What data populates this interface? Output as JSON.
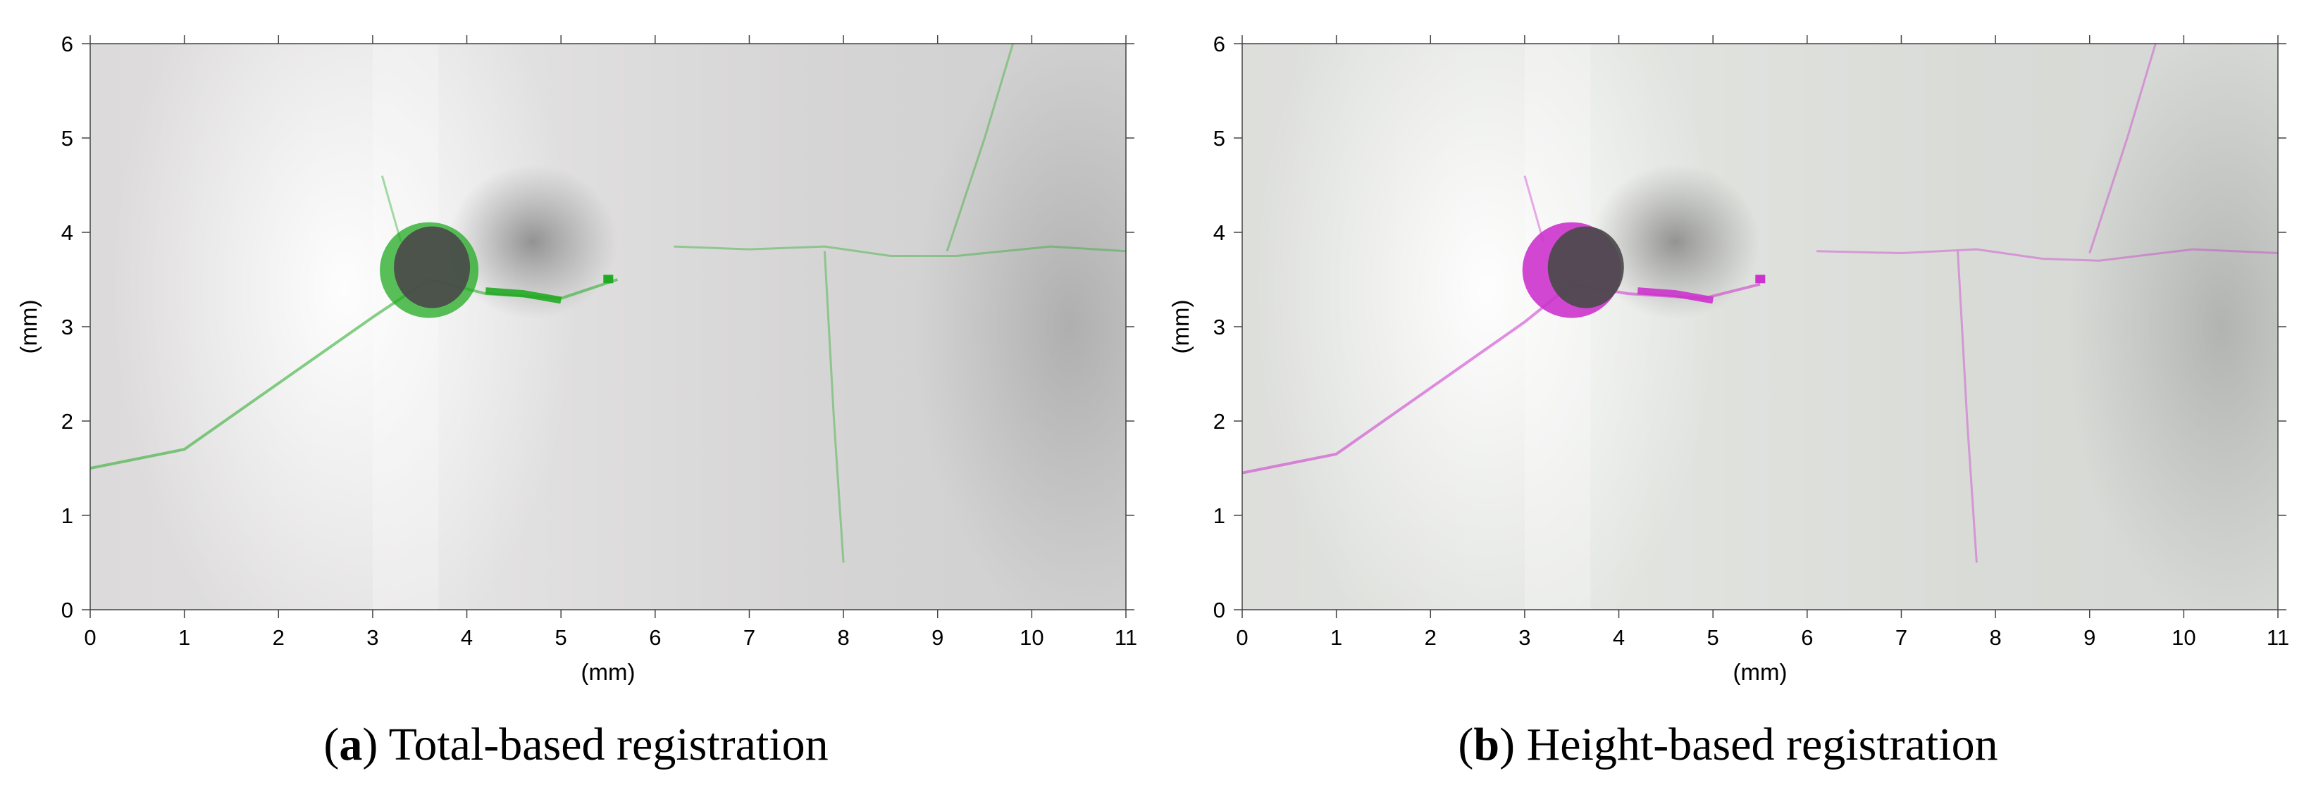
{
  "figure": {
    "panels": [
      {
        "id": "a",
        "caption_label": "a",
        "caption_text": "Total-based registration",
        "overlay_color": "#22aa22",
        "image_description_icon": "crack-surface-image",
        "chart_data": {
          "type": "heatmap",
          "xlabel": "(mm)",
          "ylabel": "(mm)",
          "xlim": [
            0,
            11
          ],
          "ylim": [
            0,
            6
          ],
          "x_ticks": [
            "0",
            "1",
            "2",
            "3",
            "4",
            "5",
            "6",
            "7",
            "8",
            "9",
            "10",
            "11"
          ],
          "y_ticks": [
            "0",
            "1",
            "2",
            "3",
            "4",
            "5",
            "6"
          ],
          "features": {
            "dark_defect_center_mm": [
              3.6,
              3.6
            ],
            "shadow_center_mm": [
              4.7,
              3.9
            ],
            "crack_main": [
              [
                0.0,
                1.5
              ],
              [
                1.0,
                1.7
              ],
              [
                2.0,
                2.4
              ],
              [
                3.0,
                3.1
              ],
              [
                3.6,
                3.5
              ],
              [
                4.2,
                3.35
              ],
              [
                5.0,
                3.3
              ],
              [
                5.6,
                3.5
              ]
            ],
            "crack_right": [
              [
                6.2,
                3.85
              ],
              [
                7.0,
                3.82
              ],
              [
                7.8,
                3.85
              ],
              [
                8.5,
                3.75
              ],
              [
                9.2,
                3.75
              ],
              [
                10.2,
                3.85
              ],
              [
                11.0,
                3.8
              ]
            ],
            "crack_top": [
              [
                9.8,
                6.0
              ],
              [
                9.5,
                5.0
              ],
              [
                9.1,
                3.8
              ]
            ],
            "crack_down": [
              [
                7.8,
                3.8
              ],
              [
                7.9,
                2.0
              ],
              [
                8.0,
                0.5
              ]
            ],
            "crack_up": [
              [
                3.3,
                3.9
              ],
              [
                3.1,
                4.6
              ]
            ]
          }
        }
      },
      {
        "id": "b",
        "caption_label": "b",
        "caption_text": "Height-based registration",
        "overlay_color": "#cc33cc",
        "image_description_icon": "crack-surface-image",
        "chart_data": {
          "type": "heatmap",
          "xlabel": "(mm)",
          "ylabel": "(mm)",
          "xlim": [
            0,
            11
          ],
          "ylim": [
            0,
            6
          ],
          "x_ticks": [
            "0",
            "1",
            "2",
            "3",
            "4",
            "5",
            "6",
            "7",
            "8",
            "9",
            "10",
            "11"
          ],
          "y_ticks": [
            "0",
            "1",
            "2",
            "3",
            "4",
            "5",
            "6"
          ],
          "features": {
            "dark_defect_center_mm": [
              3.5,
              3.6
            ],
            "shadow_center_mm": [
              4.6,
              3.9
            ],
            "crack_main": [
              [
                0.0,
                1.45
              ],
              [
                1.0,
                1.65
              ],
              [
                2.0,
                2.35
              ],
              [
                3.0,
                3.05
              ],
              [
                3.5,
                3.45
              ],
              [
                4.1,
                3.35
              ],
              [
                4.9,
                3.3
              ],
              [
                5.5,
                3.45
              ]
            ],
            "crack_right": [
              [
                6.1,
                3.8
              ],
              [
                7.0,
                3.78
              ],
              [
                7.8,
                3.82
              ],
              [
                8.5,
                3.72
              ],
              [
                9.1,
                3.7
              ],
              [
                10.1,
                3.82
              ],
              [
                11.0,
                3.78
              ]
            ],
            "crack_top": [
              [
                9.7,
                6.0
              ],
              [
                9.4,
                5.0
              ],
              [
                9.0,
                3.78
              ]
            ],
            "crack_down": [
              [
                7.6,
                3.8
              ],
              [
                7.7,
                2.0
              ],
              [
                7.8,
                0.5
              ]
            ],
            "crack_up": [
              [
                3.2,
                3.9
              ],
              [
                3.0,
                4.6
              ]
            ]
          }
        }
      }
    ]
  }
}
